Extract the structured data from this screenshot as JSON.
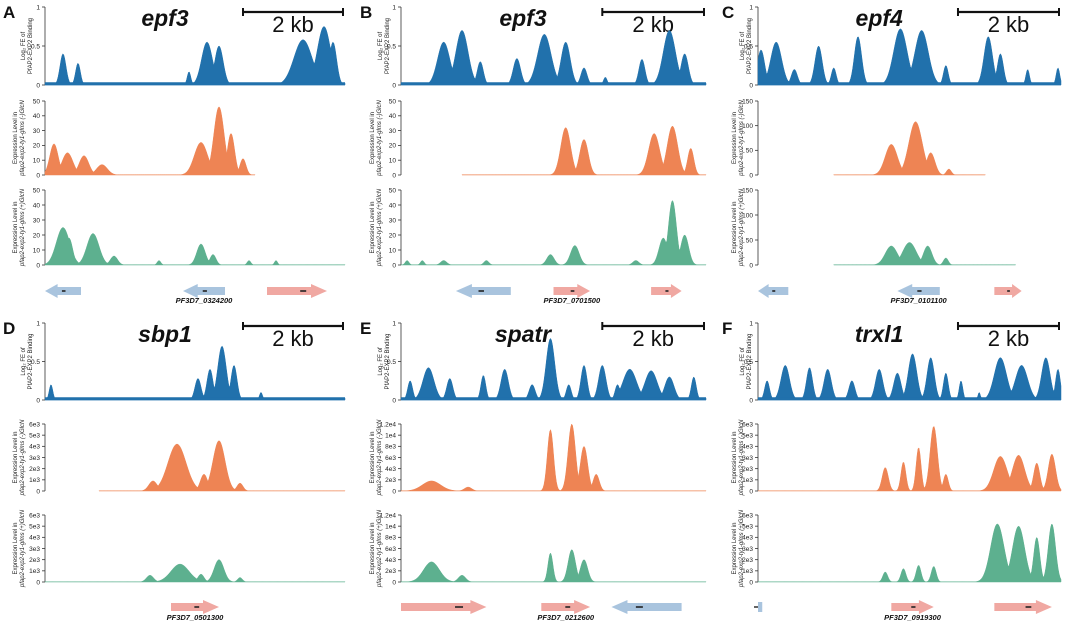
{
  "figure": {
    "scale_bar_label": "2 kb",
    "track_labels": {
      "binding": [
        "Log₂ FE of",
        "PfAP2-EXP2 Binding"
      ],
      "minus": [
        "Expression Level in",
        "pfap2-exp2-ty1-glms (-)GlcN"
      ],
      "plus": [
        "Expression Level in",
        "pfap2-exp2-ty1-glms (+)GlcN"
      ]
    }
  },
  "chart_data": [
    {
      "panel": "A",
      "title": "epf3",
      "type": "area",
      "gene_id": "PF3D7_0324200",
      "scale_bar": true,
      "binding": {
        "ylim": [
          0,
          1
        ],
        "ticks": [
          "0",
          "0.5",
          "1"
        ],
        "peaks": [
          [
            0.06,
            0.01,
            0.4
          ],
          [
            0.11,
            0.008,
            0.28
          ],
          [
            0.48,
            0.006,
            0.17
          ],
          [
            0.54,
            0.018,
            0.55
          ],
          [
            0.58,
            0.014,
            0.5
          ],
          [
            0.86,
            0.03,
            0.58
          ],
          [
            0.93,
            0.022,
            0.75
          ],
          [
            0.96,
            0.012,
            0.55
          ]
        ]
      },
      "expr_minus": {
        "ylim": [
          0,
          50
        ],
        "ticks": [
          "0",
          "10",
          "20",
          "30",
          "40",
          "50"
        ],
        "range": [
          0.0,
          0.7
        ],
        "peaks": [
          [
            0.03,
            0.014,
            21
          ],
          [
            0.075,
            0.018,
            15
          ],
          [
            0.13,
            0.016,
            13
          ],
          [
            0.19,
            0.018,
            7
          ],
          [
            0.52,
            0.022,
            22
          ],
          [
            0.58,
            0.017,
            46
          ],
          [
            0.62,
            0.012,
            28
          ],
          [
            0.66,
            0.01,
            11
          ]
        ]
      },
      "expr_plus": {
        "ylim": [
          0,
          50
        ],
        "ticks": [
          "0",
          "10",
          "20",
          "30",
          "40",
          "50"
        ],
        "range": [
          0.0,
          1.0
        ],
        "peaks": [
          [
            0.06,
            0.022,
            25
          ],
          [
            0.08,
            0.012,
            18
          ],
          [
            0.16,
            0.02,
            21
          ],
          [
            0.23,
            0.012,
            6
          ],
          [
            0.38,
            0.006,
            3
          ],
          [
            0.52,
            0.014,
            14
          ],
          [
            0.56,
            0.01,
            7
          ],
          [
            0.68,
            0.006,
            3
          ],
          [
            0.77,
            0.005,
            3
          ]
        ]
      },
      "genes": [
        {
          "start": 0.0,
          "end": 0.12,
          "dir": "left",
          "color": "#a9c4de"
        },
        {
          "start": 0.46,
          "end": 0.6,
          "dir": "left",
          "color": "#a9c4de"
        },
        {
          "start": 0.74,
          "end": 0.94,
          "dir": "right",
          "color": "#f0a8a2"
        }
      ]
    },
    {
      "panel": "B",
      "title": "epf3",
      "type": "area",
      "gene_id": "PF3D7_0701500",
      "scale_bar": true,
      "binding": {
        "ylim": [
          0,
          1
        ],
        "ticks": [
          "0",
          "0.5",
          "1"
        ],
        "peaks": [
          [
            0.14,
            0.02,
            0.55
          ],
          [
            0.2,
            0.02,
            0.7
          ],
          [
            0.26,
            0.01,
            0.3
          ],
          [
            0.38,
            0.012,
            0.34
          ],
          [
            0.47,
            0.022,
            0.65
          ],
          [
            0.54,
            0.015,
            0.55
          ],
          [
            0.6,
            0.01,
            0.22
          ],
          [
            0.67,
            0.006,
            0.1
          ],
          [
            0.79,
            0.01,
            0.33
          ],
          [
            0.88,
            0.02,
            0.7
          ],
          [
            0.93,
            0.012,
            0.4
          ]
        ]
      },
      "expr_minus": {
        "ylim": [
          0,
          50
        ],
        "ticks": [
          "0",
          "10",
          "20",
          "30",
          "40",
          "50"
        ],
        "range": [
          0.2,
          1.0
        ],
        "peaks": [
          [
            0.54,
            0.016,
            32
          ],
          [
            0.6,
            0.014,
            24
          ],
          [
            0.83,
            0.018,
            28
          ],
          [
            0.89,
            0.017,
            33
          ],
          [
            0.95,
            0.01,
            18
          ]
        ]
      },
      "expr_plus": {
        "ylim": [
          0,
          50
        ],
        "ticks": [
          "0",
          "10",
          "20",
          "30",
          "40",
          "50"
        ],
        "range": [
          0.0,
          1.0
        ],
        "peaks": [
          [
            0.02,
            0.006,
            3
          ],
          [
            0.07,
            0.006,
            3
          ],
          [
            0.14,
            0.01,
            3
          ],
          [
            0.28,
            0.008,
            3
          ],
          [
            0.49,
            0.012,
            7
          ],
          [
            0.57,
            0.014,
            13
          ],
          [
            0.77,
            0.01,
            3
          ],
          [
            0.86,
            0.014,
            18
          ],
          [
            0.89,
            0.013,
            43
          ],
          [
            0.93,
            0.013,
            20
          ]
        ]
      },
      "genes": [
        {
          "start": 0.18,
          "end": 0.36,
          "dir": "left",
          "color": "#a9c4de"
        },
        {
          "start": 0.5,
          "end": 0.62,
          "dir": "right",
          "color": "#f0a8a2"
        },
        {
          "start": 0.82,
          "end": 0.92,
          "dir": "right",
          "color": "#f0a8a2"
        }
      ]
    },
    {
      "panel": "C",
      "title": "epf4",
      "type": "area",
      "gene_id": "PF3D7_0101100",
      "scale_bar": true,
      "binding": {
        "ylim": [
          0,
          1
        ],
        "ticks": [
          "0",
          "0.5",
          "1"
        ],
        "peaks": [
          [
            0.01,
            0.012,
            0.45
          ],
          [
            0.06,
            0.018,
            0.55
          ],
          [
            0.12,
            0.01,
            0.2
          ],
          [
            0.2,
            0.012,
            0.5
          ],
          [
            0.25,
            0.008,
            0.22
          ],
          [
            0.33,
            0.012,
            0.62
          ],
          [
            0.47,
            0.022,
            0.72
          ],
          [
            0.54,
            0.022,
            0.7
          ],
          [
            0.62,
            0.008,
            0.25
          ],
          [
            0.76,
            0.014,
            0.62
          ],
          [
            0.8,
            0.01,
            0.4
          ],
          [
            0.89,
            0.006,
            0.2
          ],
          [
            0.99,
            0.006,
            0.22
          ]
        ]
      },
      "expr_minus": {
        "ylim": [
          0,
          150
        ],
        "ticks": [
          "0",
          "50",
          "100",
          "150"
        ],
        "range": [
          0.25,
          0.75
        ],
        "peaks": [
          [
            0.44,
            0.02,
            62
          ],
          [
            0.52,
            0.022,
            108
          ],
          [
            0.57,
            0.014,
            45
          ],
          [
            0.63,
            0.008,
            12
          ]
        ]
      },
      "expr_plus": {
        "ylim": [
          0,
          150
        ],
        "ticks": [
          "0",
          "50",
          "100",
          "150"
        ],
        "range": [
          0.25,
          0.85
        ],
        "peaks": [
          [
            0.44,
            0.02,
            38
          ],
          [
            0.5,
            0.022,
            45
          ],
          [
            0.56,
            0.014,
            38
          ],
          [
            0.62,
            0.008,
            14
          ]
        ]
      },
      "genes": [
        {
          "start": 0.0,
          "end": 0.1,
          "dir": "left",
          "color": "#a9c4de"
        },
        {
          "start": 0.46,
          "end": 0.6,
          "dir": "left",
          "color": "#a9c4de"
        },
        {
          "start": 0.78,
          "end": 0.87,
          "dir": "right",
          "color": "#f0a8a2"
        }
      ]
    },
    {
      "panel": "D",
      "title": "sbp1",
      "type": "area",
      "gene_id": "PF3D7_0501300",
      "scale_bar": true,
      "binding": {
        "ylim": [
          0,
          1
        ],
        "ticks": [
          "0",
          "0.5",
          "1"
        ],
        "peaks": [
          [
            0.02,
            0.006,
            0.2
          ],
          [
            0.51,
            0.01,
            0.28
          ],
          [
            0.55,
            0.01,
            0.4
          ],
          [
            0.59,
            0.014,
            0.7
          ],
          [
            0.63,
            0.01,
            0.45
          ],
          [
            0.72,
            0.005,
            0.1
          ]
        ]
      },
      "expr_minus": {
        "ylim": [
          0,
          6000
        ],
        "ticks": [
          "0",
          "1e3",
          "2e3",
          "3e3",
          "4e3",
          "5e3",
          "6e3"
        ],
        "range": [
          0.18,
          1.0
        ],
        "peaks": [
          [
            0.36,
            0.014,
            900
          ],
          [
            0.44,
            0.03,
            4200
          ],
          [
            0.53,
            0.012,
            1500
          ],
          [
            0.58,
            0.02,
            4500
          ],
          [
            0.65,
            0.01,
            700
          ]
        ]
      },
      "expr_plus": {
        "ylim": [
          0,
          6000
        ],
        "ticks": [
          "0",
          "1e3",
          "2e3",
          "3e3",
          "4e3",
          "5e3",
          "6e3"
        ],
        "range": [
          0.0,
          1.0
        ],
        "peaks": [
          [
            0.35,
            0.012,
            600
          ],
          [
            0.45,
            0.03,
            1600
          ],
          [
            0.52,
            0.01,
            700
          ],
          [
            0.58,
            0.016,
            2000
          ],
          [
            0.65,
            0.008,
            400
          ]
        ]
      },
      "genes": [
        {
          "start": 0.42,
          "end": 0.58,
          "dir": "right",
          "color": "#f0a8a2"
        }
      ]
    },
    {
      "panel": "E",
      "title": "spatr",
      "type": "area",
      "gene_id": "PF3D7_0212600",
      "scale_bar": true,
      "binding": {
        "ylim": [
          0,
          1
        ],
        "ticks": [
          "0",
          "0.5",
          "1"
        ],
        "peaks": [
          [
            0.03,
            0.008,
            0.25
          ],
          [
            0.09,
            0.018,
            0.42
          ],
          [
            0.16,
            0.01,
            0.28
          ],
          [
            0.27,
            0.008,
            0.32
          ],
          [
            0.34,
            0.012,
            0.4
          ],
          [
            0.43,
            0.01,
            0.2
          ],
          [
            0.49,
            0.014,
            0.8
          ],
          [
            0.55,
            0.008,
            0.2
          ],
          [
            0.6,
            0.01,
            0.45
          ],
          [
            0.66,
            0.012,
            0.45
          ],
          [
            0.71,
            0.008,
            0.2
          ],
          [
            0.75,
            0.022,
            0.4
          ],
          [
            0.82,
            0.02,
            0.38
          ],
          [
            0.88,
            0.015,
            0.3
          ],
          [
            0.96,
            0.008,
            0.3
          ]
        ]
      },
      "expr_minus": {
        "ylim": [
          0,
          12000
        ],
        "ticks": [
          "0",
          "2e3",
          "4e3",
          "6e3",
          "8e3",
          "1e4",
          "1.2e4"
        ],
        "range": [
          0.0,
          1.0
        ],
        "peaks": [
          [
            0.1,
            0.03,
            1800
          ],
          [
            0.22,
            0.012,
            700
          ],
          [
            0.49,
            0.01,
            11000
          ],
          [
            0.56,
            0.012,
            12000
          ],
          [
            0.6,
            0.012,
            8000
          ],
          [
            0.64,
            0.01,
            3000
          ]
        ]
      },
      "expr_plus": {
        "ylim": [
          0,
          12000
        ],
        "ticks": [
          "0",
          "2e3",
          "4e3",
          "6e3",
          "8e3",
          "1e4",
          "1.2e4"
        ],
        "range": [
          0.0,
          1.0
        ],
        "peaks": [
          [
            0.1,
            0.026,
            3600
          ],
          [
            0.2,
            0.012,
            1200
          ],
          [
            0.49,
            0.008,
            5200
          ],
          [
            0.56,
            0.012,
            5800
          ],
          [
            0.6,
            0.012,
            4000
          ]
        ]
      },
      "genes": [
        {
          "start": 0.0,
          "end": 0.28,
          "dir": "right",
          "color": "#f0a8a2"
        },
        {
          "start": 0.46,
          "end": 0.62,
          "dir": "right",
          "color": "#f0a8a2"
        },
        {
          "start": 0.69,
          "end": 0.92,
          "dir": "left",
          "color": "#a9c4de"
        }
      ]
    },
    {
      "panel": "F",
      "title": "trxl1",
      "type": "area",
      "gene_id": "PF3D7_0919300",
      "scale_bar": true,
      "binding": {
        "ylim": [
          0,
          1
        ],
        "ticks": [
          "0",
          "0.5",
          "1"
        ],
        "peaks": [
          [
            0.03,
            0.008,
            0.25
          ],
          [
            0.09,
            0.014,
            0.45
          ],
          [
            0.17,
            0.01,
            0.42
          ],
          [
            0.23,
            0.012,
            0.4
          ],
          [
            0.31,
            0.01,
            0.25
          ],
          [
            0.4,
            0.012,
            0.4
          ],
          [
            0.46,
            0.012,
            0.35
          ],
          [
            0.51,
            0.014,
            0.6
          ],
          [
            0.57,
            0.012,
            0.55
          ],
          [
            0.62,
            0.008,
            0.35
          ],
          [
            0.67,
            0.006,
            0.25
          ],
          [
            0.73,
            0.004,
            0.1
          ],
          [
            0.8,
            0.02,
            0.55
          ],
          [
            0.87,
            0.02,
            0.45
          ],
          [
            0.95,
            0.014,
            0.55
          ],
          [
            0.99,
            0.008,
            0.4
          ]
        ]
      },
      "expr_minus": {
        "ylim": [
          0,
          6000
        ],
        "ticks": [
          "0",
          "1e3",
          "2e3",
          "3e3",
          "4e3",
          "5e3",
          "6e3"
        ],
        "range": [
          0.0,
          1.0
        ],
        "peaks": [
          [
            0.42,
            0.01,
            2100
          ],
          [
            0.48,
            0.008,
            2600
          ],
          [
            0.53,
            0.008,
            3900
          ],
          [
            0.58,
            0.012,
            5800
          ],
          [
            0.62,
            0.008,
            1500
          ],
          [
            0.8,
            0.022,
            3100
          ],
          [
            0.86,
            0.02,
            3200
          ],
          [
            0.92,
            0.01,
            2500
          ],
          [
            0.97,
            0.012,
            3300
          ]
        ]
      },
      "expr_plus": {
        "ylim": [
          0,
          6000
        ],
        "ticks": [
          "0",
          "1e3",
          "2e3",
          "3e3",
          "4e3",
          "5e3",
          "6e3"
        ],
        "range": [
          0.0,
          1.0
        ],
        "peaks": [
          [
            0.42,
            0.008,
            900
          ],
          [
            0.48,
            0.008,
            1200
          ],
          [
            0.53,
            0.008,
            1500
          ],
          [
            0.58,
            0.008,
            1400
          ],
          [
            0.79,
            0.022,
            5200
          ],
          [
            0.86,
            0.02,
            5000
          ],
          [
            0.92,
            0.01,
            4000
          ],
          [
            0.97,
            0.012,
            5200
          ]
        ]
      },
      "genes": [
        {
          "start": 0.0,
          "end": 0.04,
          "dir": "none",
          "color": "#a9c4de"
        },
        {
          "start": 0.44,
          "end": 0.58,
          "dir": "right",
          "color": "#f0a8a2"
        },
        {
          "start": 0.78,
          "end": 0.97,
          "dir": "right",
          "color": "#f0a8a2"
        }
      ]
    }
  ]
}
